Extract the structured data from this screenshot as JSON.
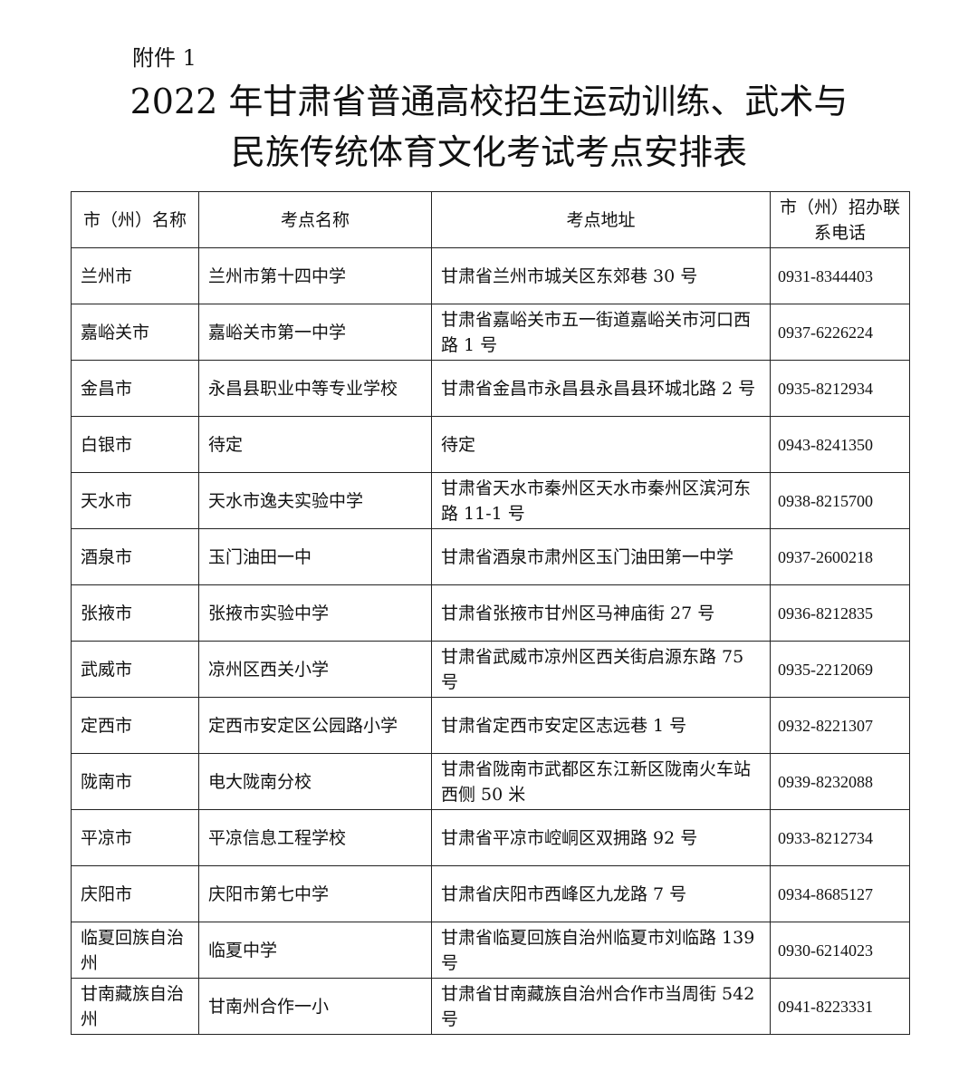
{
  "attachment_label": "附件 1",
  "title_line1": "2022 年甘肃省普通高校招生运动训练、武术与",
  "title_line2": "民族传统体育文化考试考点安排表",
  "table": {
    "headers": [
      "市（州）名称",
      "考点名称",
      "考点地址",
      "市（州）招办联系电话"
    ],
    "rows": [
      [
        "兰州市",
        "兰州市第十四中学",
        "甘肃省兰州市城关区东郊巷 30 号",
        "0931-8344403"
      ],
      [
        "嘉峪关市",
        "嘉峪关市第一中学",
        "甘肃省嘉峪关市五一街道嘉峪关市河口西路 1 号",
        "0937-6226224"
      ],
      [
        "金昌市",
        "永昌县职业中等专业学校",
        "甘肃省金昌市永昌县永昌县环城北路 2 号",
        "0935-8212934"
      ],
      [
        "白银市",
        "待定",
        "待定",
        "0943-8241350"
      ],
      [
        "天水市",
        "天水市逸夫实验中学",
        "甘肃省天水市秦州区天水市秦州区滨河东路 11-1 号",
        "0938-8215700"
      ],
      [
        "酒泉市",
        "玉门油田一中",
        "甘肃省酒泉市肃州区玉门油田第一中学",
        "0937-2600218"
      ],
      [
        "张掖市",
        "张掖市实验中学",
        "甘肃省张掖市甘州区马神庙街 27 号",
        "0936-8212835"
      ],
      [
        "武威市",
        "凉州区西关小学",
        "甘肃省武威市凉州区西关街启源东路 75 号",
        "0935-2212069"
      ],
      [
        "定西市",
        "定西市安定区公园路小学",
        "甘肃省定西市安定区志远巷 1 号",
        "0932-8221307"
      ],
      [
        "陇南市",
        "电大陇南分校",
        "甘肃省陇南市武都区东江新区陇南火车站西侧 50 米",
        "0939-8232088"
      ],
      [
        "平凉市",
        "平凉信息工程学校",
        "甘肃省平凉市崆峒区双拥路 92 号",
        "0933-8212734"
      ],
      [
        "庆阳市",
        "庆阳市第七中学",
        "甘肃省庆阳市西峰区九龙路 7 号",
        "0934-8685127"
      ],
      [
        "临夏回族自治州",
        "临夏中学",
        "甘肃省临夏回族自治州临夏市刘临路 139 号",
        "0930-6214023"
      ],
      [
        "甘南藏族自治州",
        "甘南州合作一小",
        "甘肃省甘南藏族自治州合作市当周街 542 号",
        "0941-8223331"
      ]
    ]
  }
}
